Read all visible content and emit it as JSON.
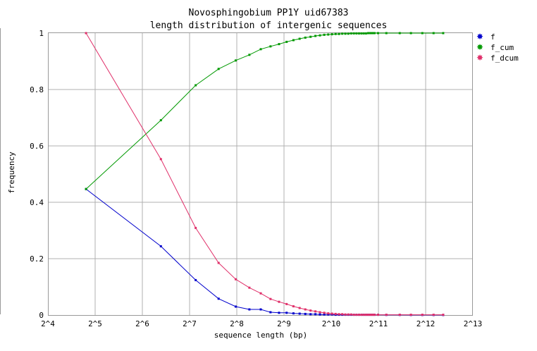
{
  "chart_data": {
    "type": "line",
    "title": "Novosphingobium PP1Y uid67383",
    "subtitle": "length distribution of intergenic sequences",
    "xlabel": "sequence length (bp)",
    "ylabel": "frequency",
    "x_scale": "log2",
    "xlim": [
      16,
      8192
    ],
    "ylim": [
      0,
      1
    ],
    "x_ticks": [
      "2^4",
      "2^5",
      "2^6",
      "2^7",
      "2^8",
      "2^9",
      "2^10",
      "2^11",
      "2^12",
      "2^13"
    ],
    "y_ticks": [
      "0",
      "0.2",
      "0.4",
      "0.6",
      "0.8",
      "1"
    ],
    "grid": true,
    "legend_position": "right",
    "x": [
      28,
      84,
      140,
      196,
      252,
      308,
      364,
      420,
      476,
      532,
      588,
      644,
      700,
      756,
      812,
      868,
      924,
      980,
      1036,
      1092,
      1148,
      1204,
      1260,
      1316,
      1372,
      1428,
      1484,
      1540,
      1596,
      1652,
      1708,
      1764,
      1820,
      1876,
      1932,
      2036,
      2300,
      2800,
      3300,
      3900,
      4600,
      5300
    ],
    "series": [
      {
        "name": "f",
        "color": "#0000cc",
        "values": [
          0.447,
          0.244,
          0.124,
          0.058,
          0.03,
          0.02,
          0.02,
          0.01,
          0.008,
          0.008,
          0.006,
          0.005,
          0.004,
          0.003,
          0.003,
          0.002,
          0.002,
          0.002,
          0.002,
          0.001,
          0.001,
          0.001,
          0.001,
          0.001,
          0.001,
          0.001,
          0.001,
          0.001,
          0.001,
          0.001,
          0.001,
          0.001,
          0.001,
          0.001,
          0.001,
          0.001,
          0.0005,
          0.0005,
          0.0003,
          0.0003,
          0.0002,
          0.0002
        ]
      },
      {
        "name": "f_cum",
        "color": "#009900",
        "values": [
          0.447,
          0.691,
          0.815,
          0.873,
          0.903,
          0.923,
          0.943,
          0.953,
          0.961,
          0.969,
          0.975,
          0.98,
          0.984,
          0.987,
          0.99,
          0.992,
          0.994,
          0.995,
          0.996,
          0.997,
          0.997,
          0.998,
          0.998,
          0.998,
          0.999,
          0.999,
          0.999,
          0.999,
          0.999,
          0.999,
          0.999,
          1.0,
          1.0,
          1.0,
          1.0,
          1.0,
          1.0,
          1.0,
          1.0,
          1.0,
          1.0,
          1.0
        ]
      },
      {
        "name": "f_dcum",
        "color": "#e0306a",
        "values": [
          1.0,
          0.553,
          0.309,
          0.185,
          0.127,
          0.097,
          0.077,
          0.057,
          0.047,
          0.039,
          0.031,
          0.025,
          0.02,
          0.016,
          0.013,
          0.01,
          0.008,
          0.006,
          0.005,
          0.004,
          0.003,
          0.003,
          0.002,
          0.002,
          0.002,
          0.001,
          0.001,
          0.001,
          0.001,
          0.001,
          0.001,
          0.001,
          0.001,
          0.001,
          0.001,
          0.001,
          0.001,
          0.001,
          0.001,
          0.001,
          0.001,
          0.001
        ]
      }
    ]
  }
}
